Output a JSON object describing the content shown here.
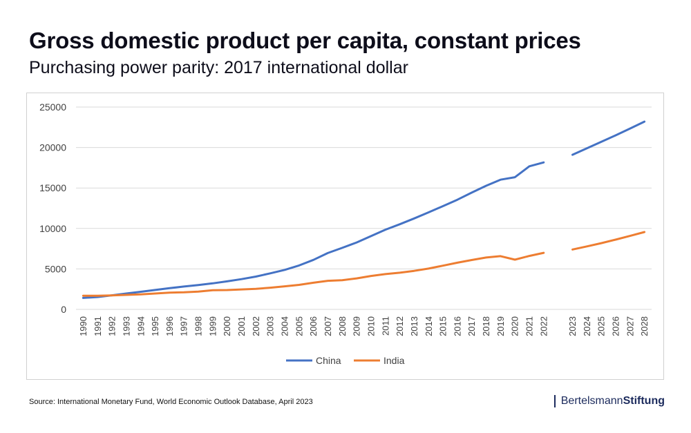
{
  "header": {
    "title": "Gross domestic product per capita, constant prices",
    "subtitle": "Purchasing power parity: 2017 international dollar"
  },
  "footer": {
    "source": "Source: International Monetary Fund, World Economic Outlook Database, April 2023",
    "brand_part1": "Bertelsmann",
    "brand_part2": "Stiftung"
  },
  "colors": {
    "china": "#4472c4",
    "india": "#ed7d31",
    "grid": "#d9d9d9",
    "axis_text": "#404040"
  },
  "chart_data": {
    "type": "line",
    "title": "Gross domestic product per capita, constant prices",
    "subtitle": "Purchasing power parity: 2017 international dollar",
    "xlabel": "",
    "ylabel": "",
    "ylim": [
      0,
      25000
    ],
    "yticks": [
      0,
      5000,
      10000,
      15000,
      20000,
      25000
    ],
    "grid": true,
    "legend_position": "bottom",
    "categories": [
      "1990",
      "1991",
      "1992",
      "1993",
      "1994",
      "1995",
      "1996",
      "1997",
      "1998",
      "1999",
      "2000",
      "2001",
      "2002",
      "2003",
      "2004",
      "2005",
      "2006",
      "2007",
      "2008",
      "2009",
      "2010",
      "2011",
      "2012",
      "2013",
      "2014",
      "2015",
      "2016",
      "2017",
      "2018",
      "2019",
      "2020",
      "2021",
      "2022",
      "",
      "2023",
      "2024",
      "2025",
      "2026",
      "2027",
      "2028"
    ],
    "series": [
      {
        "name": "China",
        "values": [
          1420,
          1530,
          1740,
          1960,
          2180,
          2400,
          2620,
          2820,
          3010,
          3220,
          3460,
          3740,
          4050,
          4450,
          4880,
          5430,
          6120,
          6960,
          7600,
          8270,
          9050,
          9850,
          10520,
          11240,
          11990,
          12760,
          13550,
          14430,
          15270,
          16020,
          16330,
          17680,
          18160,
          null,
          19100,
          19900,
          20700,
          21500,
          22350,
          23200
        ]
      },
      {
        "name": "India",
        "values": [
          1680,
          1690,
          1730,
          1790,
          1860,
          1960,
          2070,
          2110,
          2200,
          2360,
          2390,
          2470,
          2530,
          2680,
          2850,
          3030,
          3290,
          3530,
          3600,
          3830,
          4130,
          4360,
          4530,
          4760,
          5040,
          5400,
          5770,
          6100,
          6410,
          6580,
          6140,
          6600,
          6990,
          null,
          7400,
          7780,
          8180,
          8620,
          9080,
          9560
        ]
      }
    ]
  }
}
